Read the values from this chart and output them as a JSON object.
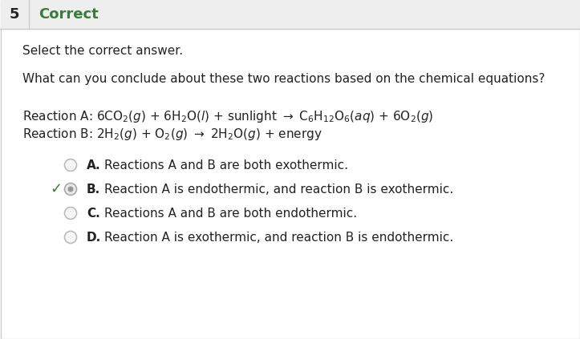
{
  "title_number": "5",
  "title_text": "Correct",
  "title_color": "#3a7a3a",
  "subtitle": "Select the correct answer.",
  "question": "What can you conclude about these two reactions based on the chemical equations?",
  "background_color": "#ffffff",
  "border_color": "#cccccc",
  "header_bg": "#eeeeee",
  "options": [
    {
      "letter": "A.",
      "text": "Reactions A and B are both exothermic.",
      "selected": false,
      "correct": false
    },
    {
      "letter": "B.",
      "text": "Reaction A is endothermic, and reaction B is exothermic.",
      "selected": true,
      "correct": true
    },
    {
      "letter": "C.",
      "text": "Reactions A and B are both endothermic.",
      "selected": false,
      "correct": false
    },
    {
      "letter": "D.",
      "text": "Reaction A is exothermic, and reaction B is endothermic.",
      "selected": false,
      "correct": false
    }
  ],
  "check_color": "#3a7a3a",
  "text_color": "#222222",
  "font_size_title": 13,
  "font_size_body": 11,
  "font_size_option": 11,
  "reaction_a": "Reaction A: 6CO$_2$($g$) + 6H$_2$O($l$) + sunlight → C$_6$H$_{12}$O$_6$($\\mathit{aq}$) + 6O$_2$($g$)",
  "reaction_b": "Reaction B: 2H$_2$($g$) + O$_2$($g$) → 2H$_2$O($g$) + energy"
}
